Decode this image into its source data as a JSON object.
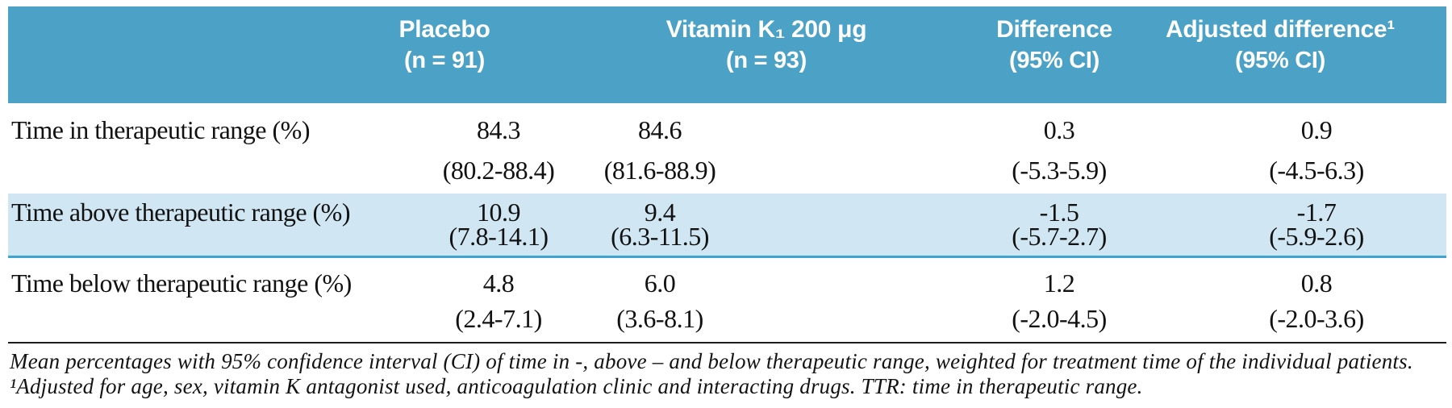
{
  "colors": {
    "header_bg": "#4ba2c6",
    "highlight_bg": "#d0e6f2",
    "highlight_border": "#3fa3cf",
    "header_text": "#ffffff",
    "body_text": "#111111"
  },
  "table": {
    "columns": [
      {
        "line1": "",
        "line2": ""
      },
      {
        "line1": "Placebo",
        "line2": "(n = 91)"
      },
      {
        "line1": "Vitamin K₁ 200 μg",
        "line2": "(n = 93)"
      },
      {
        "line1": "Difference",
        "line2": "(95% CI)"
      },
      {
        "line1": "Adjusted difference¹",
        "line2": "(95% CI)"
      }
    ],
    "rows": [
      {
        "label": "Time in therapeutic range (%)",
        "values": [
          "84.3",
          "84.6",
          "0.3",
          "0.9"
        ],
        "ci": [
          "(80.2-88.4)",
          "(81.6-88.9)",
          "(-5.3-5.9)",
          "(-4.5-6.3)"
        ],
        "highlighted": false
      },
      {
        "label": "Time above therapeutic range (%)",
        "values": [
          "10.9",
          "9.4",
          "-1.5",
          "-1.7"
        ],
        "ci": [
          "(7.8-14.1)",
          "(6.3-11.5)",
          "(-5.7-2.7)",
          "(-5.9-2.6)"
        ],
        "highlighted": true
      },
      {
        "label": "Time below therapeutic range (%)",
        "values": [
          "4.8",
          "6.0",
          "1.2",
          "0.8"
        ],
        "ci": [
          "(2.4-7.1)",
          "(3.6-8.1)",
          "(-2.0-4.5)",
          "(-2.0-3.6)"
        ],
        "highlighted": false
      }
    ]
  },
  "footnote": "Mean percentages with 95% confidence interval (CI) of time in -, above – and below therapeutic range, weighted for treatment time of the individual patients. ¹Adjusted for age, sex, vitamin K antagonist used, anticoagulation clinic and interacting drugs. TTR: time in therapeutic range."
}
